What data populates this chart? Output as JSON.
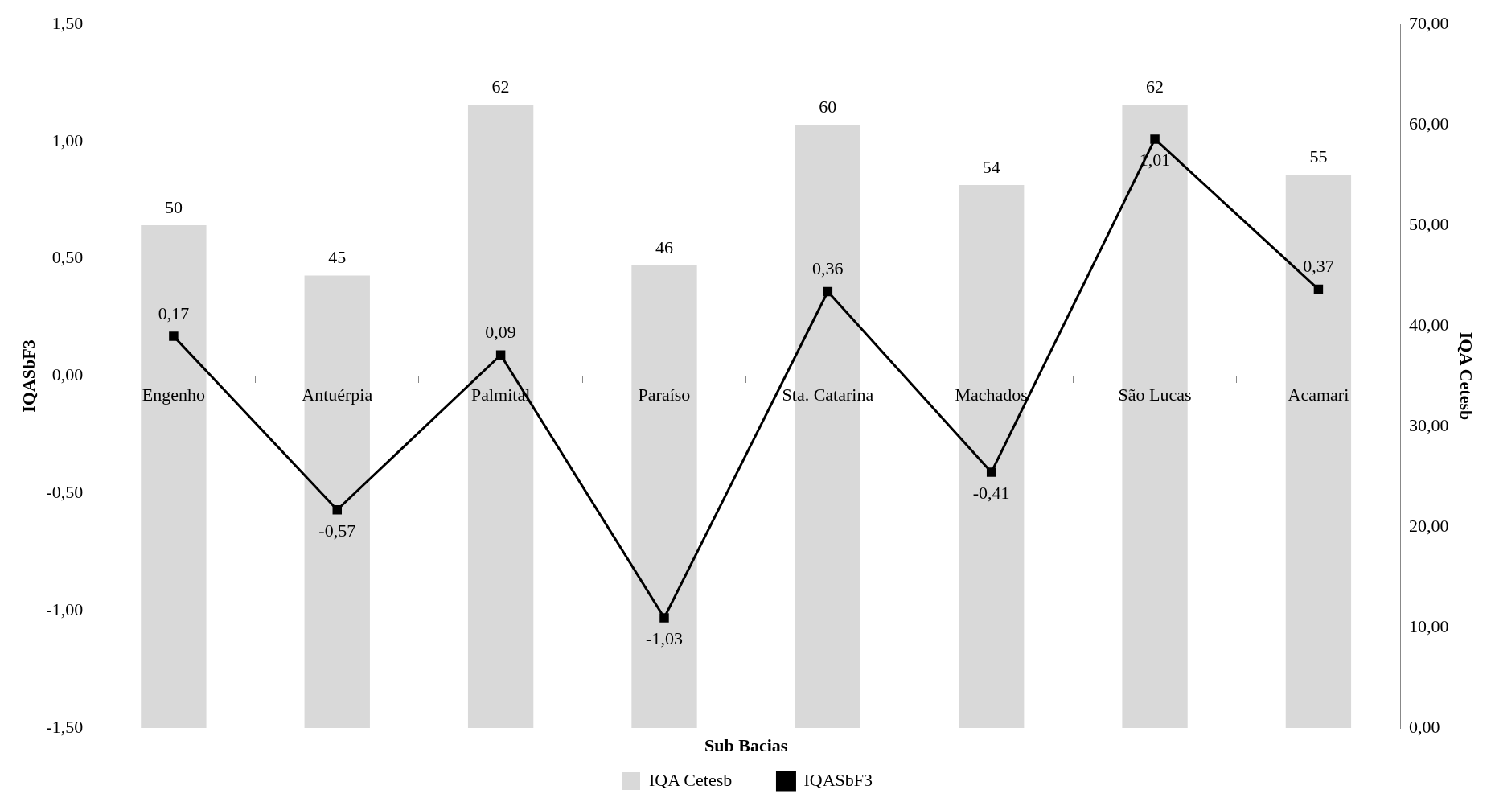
{
  "chart_data": {
    "type": "bar",
    "xlabel": "Sub Bacias",
    "ylabel": "IQASbF3",
    "y2label": "IQA Cetesb",
    "categories": [
      "Engenho",
      "Antuérpia",
      "Palmital",
      "Paraíso",
      "Sta. Catarina",
      "Machados",
      "São Lucas",
      "Acamari"
    ],
    "series": [
      {
        "name": "IQA Cetesb",
        "axis": "y2",
        "color": "#d9d9d9",
        "values": [
          50,
          45,
          62,
          46,
          60,
          54,
          62,
          55
        ],
        "value_labels": [
          "50",
          "45",
          "62",
          "46",
          "60",
          "54",
          "62",
          "55"
        ]
      },
      {
        "name": "IQASbF3",
        "type": "line",
        "axis": "y",
        "color": "#000000",
        "marker": "square",
        "values": [
          0.17,
          -0.57,
          0.09,
          -1.03,
          0.36,
          -0.41,
          1.01,
          0.37
        ],
        "value_labels": [
          "0,17",
          "-0,57",
          "0,09",
          "-1,03",
          "0,36",
          "-0,41",
          "1,01",
          "0,37"
        ]
      }
    ],
    "ylim": [
      -1.5,
      1.5
    ],
    "yticks": [
      {
        "value": -1.5,
        "label": "-1,50"
      },
      {
        "value": -1,
        "label": "-1,00"
      },
      {
        "value": -0.5,
        "label": "-0,50"
      },
      {
        "value": 0,
        "label": "0,00"
      },
      {
        "value": 0.5,
        "label": "0,50"
      },
      {
        "value": 1,
        "label": "1,00"
      },
      {
        "value": 1.5,
        "label": "1,50"
      }
    ],
    "y2lim": [
      0,
      70
    ],
    "y2ticks": [
      {
        "value": 0,
        "label": "0,00"
      },
      {
        "value": 10,
        "label": "10,00"
      },
      {
        "value": 20,
        "label": "20,00"
      },
      {
        "value": 30,
        "label": "30,00"
      },
      {
        "value": 40,
        "label": "40,00"
      },
      {
        "value": 50,
        "label": "50,00"
      },
      {
        "value": 60,
        "label": "60,00"
      },
      {
        "value": 70,
        "label": "70,00"
      }
    ],
    "legend": "bottom",
    "grid": false
  }
}
